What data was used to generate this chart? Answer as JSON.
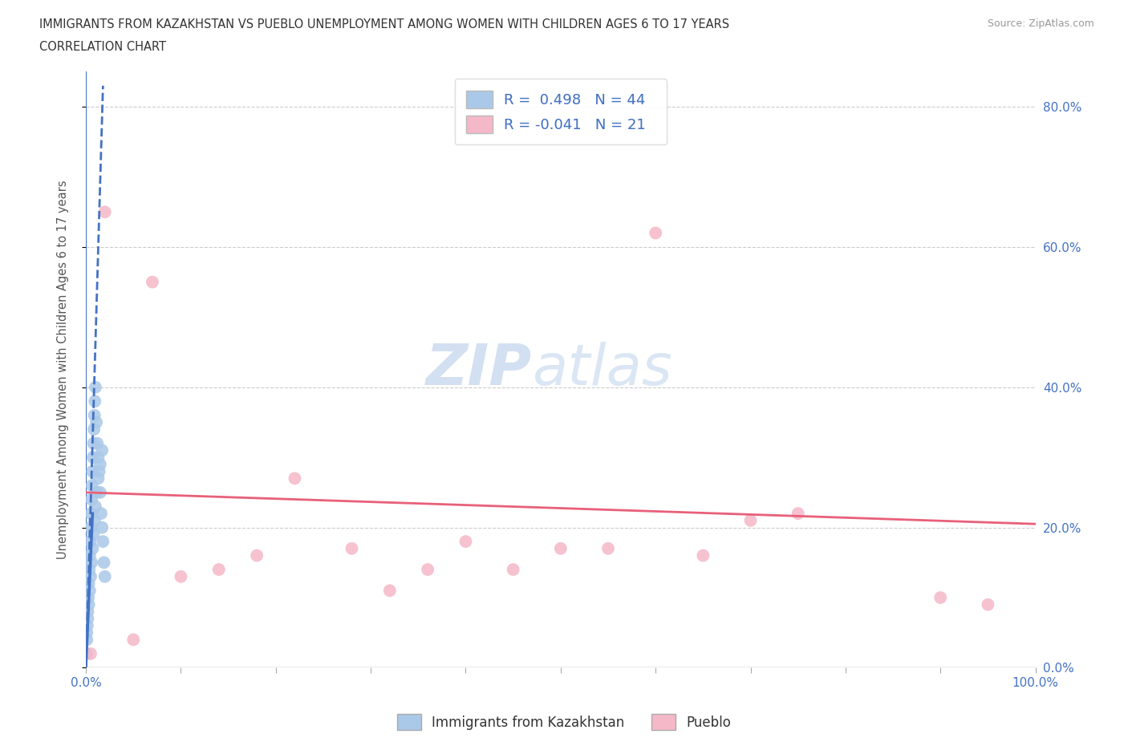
{
  "title_line1": "IMMIGRANTS FROM KAZAKHSTAN VS PUEBLO UNEMPLOYMENT AMONG WOMEN WITH CHILDREN AGES 6 TO 17 YEARS",
  "title_line2": "CORRELATION CHART",
  "source": "Source: ZipAtlas.com",
  "ylabel": "Unemployment Among Women with Children Ages 6 to 17 years",
  "xlim": [
    0,
    100
  ],
  "ylim": [
    0,
    85
  ],
  "xticks": [
    0,
    10,
    20,
    30,
    40,
    50,
    60,
    70,
    80,
    90,
    100
  ],
  "xticklabels_ends_only": true,
  "yticks": [
    0,
    20,
    40,
    60,
    80
  ],
  "yticklabels": [
    "0.0%",
    "20.0%",
    "40.0%",
    "60.0%",
    "80.0%"
  ],
  "watermark_zip": "ZIP",
  "watermark_atlas": "atlas",
  "legend_blue_label": "Immigrants from Kazakhstan",
  "legend_pink_label": "Pueblo",
  "R_blue": 0.498,
  "N_blue": 44,
  "R_pink": -0.041,
  "N_pink": 21,
  "blue_dot_color": "#aac8e8",
  "pink_dot_color": "#f5b8c8",
  "blue_line_color": "#4472c4",
  "pink_line_color": "#e8607a",
  "blue_scatter_x": [
    0.05,
    0.1,
    0.15,
    0.2,
    0.25,
    0.3,
    0.35,
    0.4,
    0.45,
    0.5,
    0.55,
    0.6,
    0.65,
    0.7,
    0.75,
    0.8,
    0.85,
    0.9,
    0.95,
    1.0,
    1.1,
    1.2,
    1.3,
    1.4,
    1.5,
    1.6,
    1.7,
    1.8,
    1.9,
    2.0,
    0.1,
    0.2,
    0.3,
    0.4,
    0.5,
    0.6,
    0.7,
    0.8,
    0.9,
    1.0,
    1.1,
    1.3,
    1.5,
    1.7
  ],
  "blue_scatter_y": [
    2,
    4,
    6,
    8,
    10,
    12,
    14,
    16,
    18,
    20,
    22,
    24,
    26,
    28,
    30,
    32,
    34,
    36,
    38,
    40,
    35,
    32,
    30,
    28,
    25,
    22,
    20,
    18,
    15,
    13,
    5,
    7,
    9,
    11,
    13,
    15,
    17,
    19,
    21,
    23,
    25,
    27,
    29,
    31
  ],
  "pink_scatter_x": [
    0.5,
    2.0,
    5.0,
    7.0,
    10.0,
    14.0,
    18.0,
    22.0,
    28.0,
    32.0,
    36.0,
    40.0,
    45.0,
    50.0,
    55.0,
    60.0,
    65.0,
    70.0,
    75.0,
    90.0,
    95.0
  ],
  "pink_scatter_y": [
    2.0,
    65.0,
    4.0,
    55.0,
    13.0,
    14.0,
    16.0,
    27.0,
    17.0,
    11.0,
    14.0,
    18.0,
    14.0,
    17.0,
    17.0,
    62.0,
    16.0,
    21.0,
    22.0,
    10.0,
    9.0
  ],
  "pink_trend_start_y": 25.0,
  "pink_trend_end_y": 20.5,
  "blue_trend_x0": 0.0,
  "blue_trend_y0": 0.0,
  "blue_trend_x1": 1.8,
  "blue_trend_y1": 83.0
}
